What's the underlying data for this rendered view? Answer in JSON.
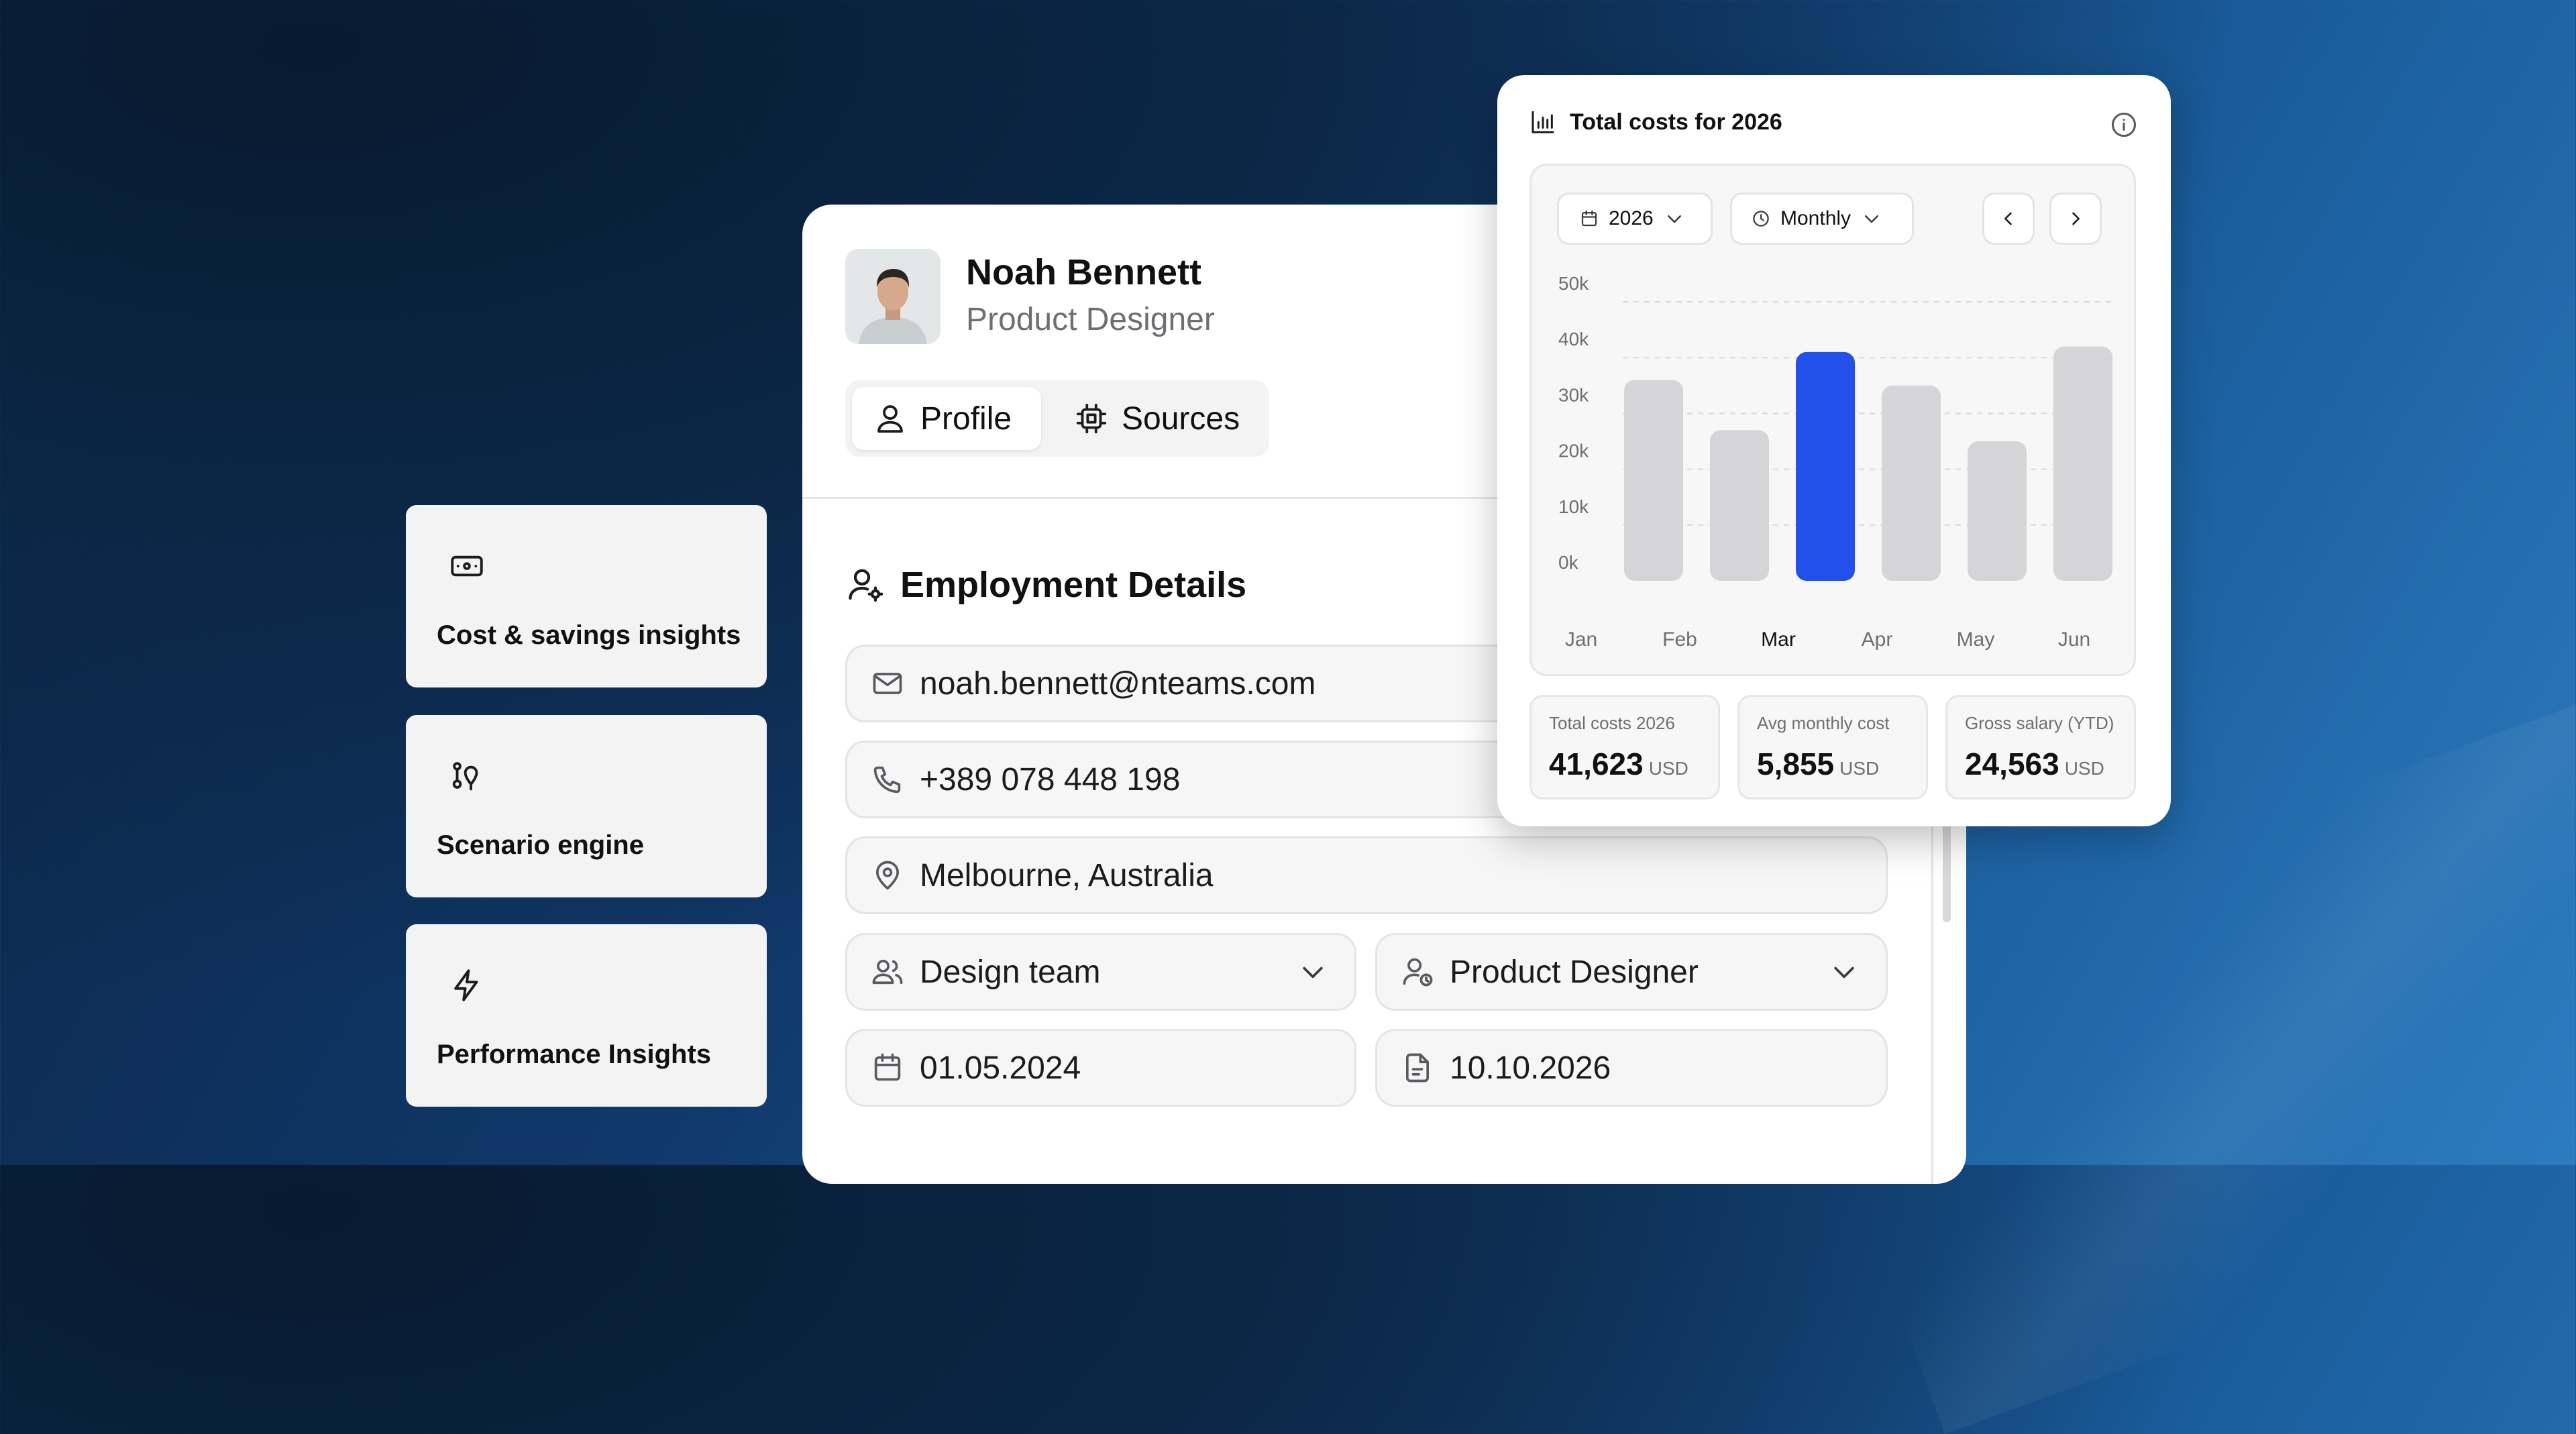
{
  "features": [
    {
      "label": "Cost & savings insights",
      "icon": "banknote-icon"
    },
    {
      "label": "Scenario engine",
      "icon": "route-pins-icon"
    },
    {
      "label": "Performance Insights",
      "icon": "lightning-icon"
    }
  ],
  "profile": {
    "name": "Noah Bennett",
    "role": "Product Designer",
    "avatar_icon": "person-avatar",
    "tabs": [
      {
        "label": "Profile",
        "icon": "user-icon",
        "active": true
      },
      {
        "label": "Sources",
        "icon": "cpu-chip-icon",
        "active": false
      }
    ]
  },
  "employment": {
    "title": "Employment Details",
    "email": "noah.bennett@nteams.com",
    "phone": "+389 078 448 198",
    "location": "Melbourne, Australia",
    "team": "Design team",
    "position": "Product Designer",
    "start_date": "01.05.2024",
    "end_date": "10.10.2026"
  },
  "chart_card": {
    "title": "Total costs for 2026",
    "year_select": "2026",
    "period_select": "Monthly",
    "stats": [
      {
        "label": "Total costs 2026",
        "value": "41,623",
        "unit": "USD"
      },
      {
        "label": "Avg monthly cost",
        "value": "5,855",
        "unit": "USD"
      },
      {
        "label": "Gross salary (YTD)",
        "value": "24,563",
        "unit": "USD"
      }
    ]
  },
  "chart_data": {
    "type": "bar",
    "categories": [
      "Jan",
      "Feb",
      "Mar",
      "Apr",
      "May",
      "Jun"
    ],
    "values": [
      36,
      27,
      41,
      35,
      25,
      42
    ],
    "highlight_index": 2,
    "highlight_color": "#2350eb",
    "bar_color": "#d5d5d8",
    "yticks": [
      "0k",
      "10k",
      "20k",
      "30k",
      "40k",
      "50k"
    ],
    "ylim": [
      0,
      50
    ],
    "grid": true
  }
}
